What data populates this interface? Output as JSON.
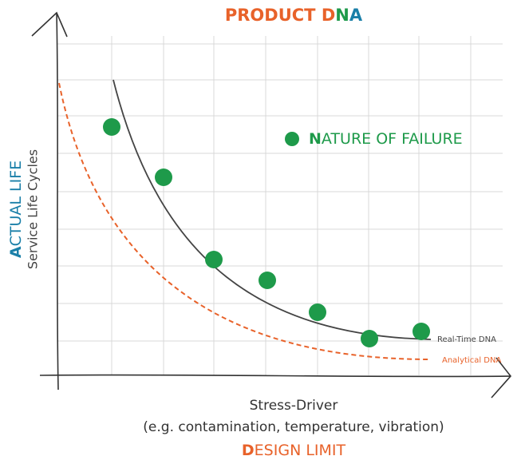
{
  "title": [
    "PRODUCT D",
    "N",
    "A"
  ],
  "legend": [
    "N",
    "ATURE OF FAILURE"
  ],
  "y_axis": {
    "label": [
      "A",
      "CTUAL LIFE"
    ],
    "sublabel": "Service Life Cycles"
  },
  "x_axis": {
    "label": "Stress-Driver",
    "sublabel": "(e.g. contamination, temperature, vibration)",
    "limit": [
      "D",
      "ESIGN LIMIT"
    ]
  },
  "curves": [
    "Real-Time DNA",
    "Analytical DNA"
  ]
}
